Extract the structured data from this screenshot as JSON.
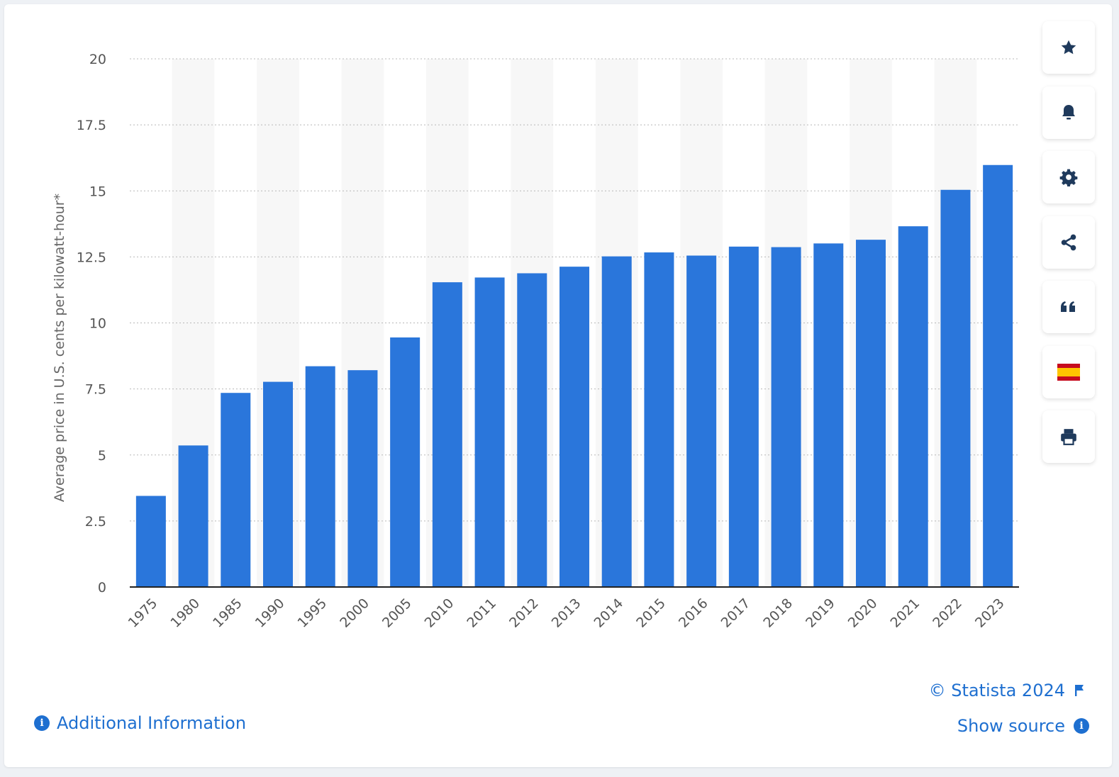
{
  "colors": {
    "bar": "#2a76db",
    "stripe": "#f7f7f7",
    "grid": "#b8b8b8",
    "axis_text": "#555555",
    "link": "#1e6fd0",
    "tool_icon": "#1f3a5c"
  },
  "chart_data": {
    "type": "bar",
    "categories": [
      "1975",
      "1980",
      "1985",
      "1990",
      "1995",
      "2000",
      "2005",
      "2010",
      "2011",
      "2012",
      "2013",
      "2014",
      "2015",
      "2016",
      "2017",
      "2018",
      "2019",
      "2020",
      "2021",
      "2022",
      "2023"
    ],
    "values": [
      3.45,
      5.36,
      7.35,
      7.77,
      8.36,
      8.21,
      9.45,
      11.54,
      11.72,
      11.88,
      12.13,
      12.52,
      12.67,
      12.55,
      12.89,
      12.87,
      13.01,
      13.15,
      13.66,
      15.04,
      15.98
    ],
    "ylabel": "Average price in U.S. cents per kilowatt-hour*",
    "xlabel": "",
    "ylim": [
      0,
      20
    ],
    "yticks": [
      0,
      2.5,
      5,
      7.5,
      10,
      12.5,
      15,
      17.5,
      20
    ],
    "ytick_labels": [
      "0",
      "2.5",
      "5",
      "7.5",
      "10",
      "12.5",
      "15",
      "17.5",
      "20"
    ],
    "grid": true,
    "grid_style": "dotted",
    "alternating_column_bands": true
  },
  "toolbar": {
    "buttons": [
      {
        "name": "favorite-button",
        "icon": "star-icon"
      },
      {
        "name": "notification-button",
        "icon": "bell-icon"
      },
      {
        "name": "settings-button",
        "icon": "gear-icon"
      },
      {
        "name": "share-button",
        "icon": "share-icon"
      },
      {
        "name": "cite-button",
        "icon": "quote-icon"
      },
      {
        "name": "language-button",
        "icon": "spain-flag-icon"
      },
      {
        "name": "print-button",
        "icon": "printer-icon"
      }
    ]
  },
  "footer": {
    "copyright": "© Statista 2024",
    "additional_info": "Additional Information",
    "show_source": "Show source",
    "info_glyph": "i"
  }
}
